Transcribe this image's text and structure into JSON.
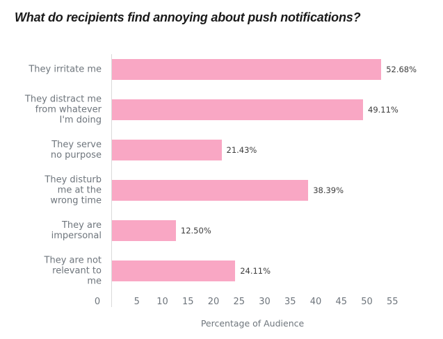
{
  "title": "What do recipients find annoying about push notifications?",
  "colors": {
    "background": "#ffffff",
    "bar": "#f9a7c4",
    "title": "#1a1a1a",
    "label": "#6e757c",
    "value": "#3c3c3c",
    "axis_line": "#d9d9d9"
  },
  "chart_data": {
    "type": "bar",
    "orientation": "horizontal",
    "title": "What do recipients find annoying about push notifications?",
    "categories": [
      "They irritate me",
      "They distract me from whatever I'm doing",
      "They serve no purpose",
      "They disturb me at the wrong time",
      "They are impersonal",
      "They are not relevant to me"
    ],
    "category_lines": [
      [
        "They irritate me"
      ],
      [
        "They distract me",
        "from whatever",
        "I'm doing"
      ],
      [
        "They serve",
        "no purpose"
      ],
      [
        "They disturb",
        "me at the",
        "wrong time"
      ],
      [
        "They are",
        "impersonal"
      ],
      [
        "They are not",
        "relevant to",
        "me"
      ]
    ],
    "values": [
      52.68,
      49.11,
      21.43,
      38.39,
      12.5,
      24.11
    ],
    "value_labels": [
      "52.68%",
      "49.11%",
      "21.43%",
      "38.39%",
      "12.50%",
      "24.11%"
    ],
    "xlabel": "Percentage of Audience",
    "ylabel": "",
    "xticks": [
      0,
      5,
      10,
      15,
      20,
      25,
      30,
      35,
      40,
      45,
      50,
      55
    ],
    "xlim": [
      0,
      55
    ],
    "grid": false,
    "legend": false,
    "bar_color": "#f9a7c4"
  }
}
